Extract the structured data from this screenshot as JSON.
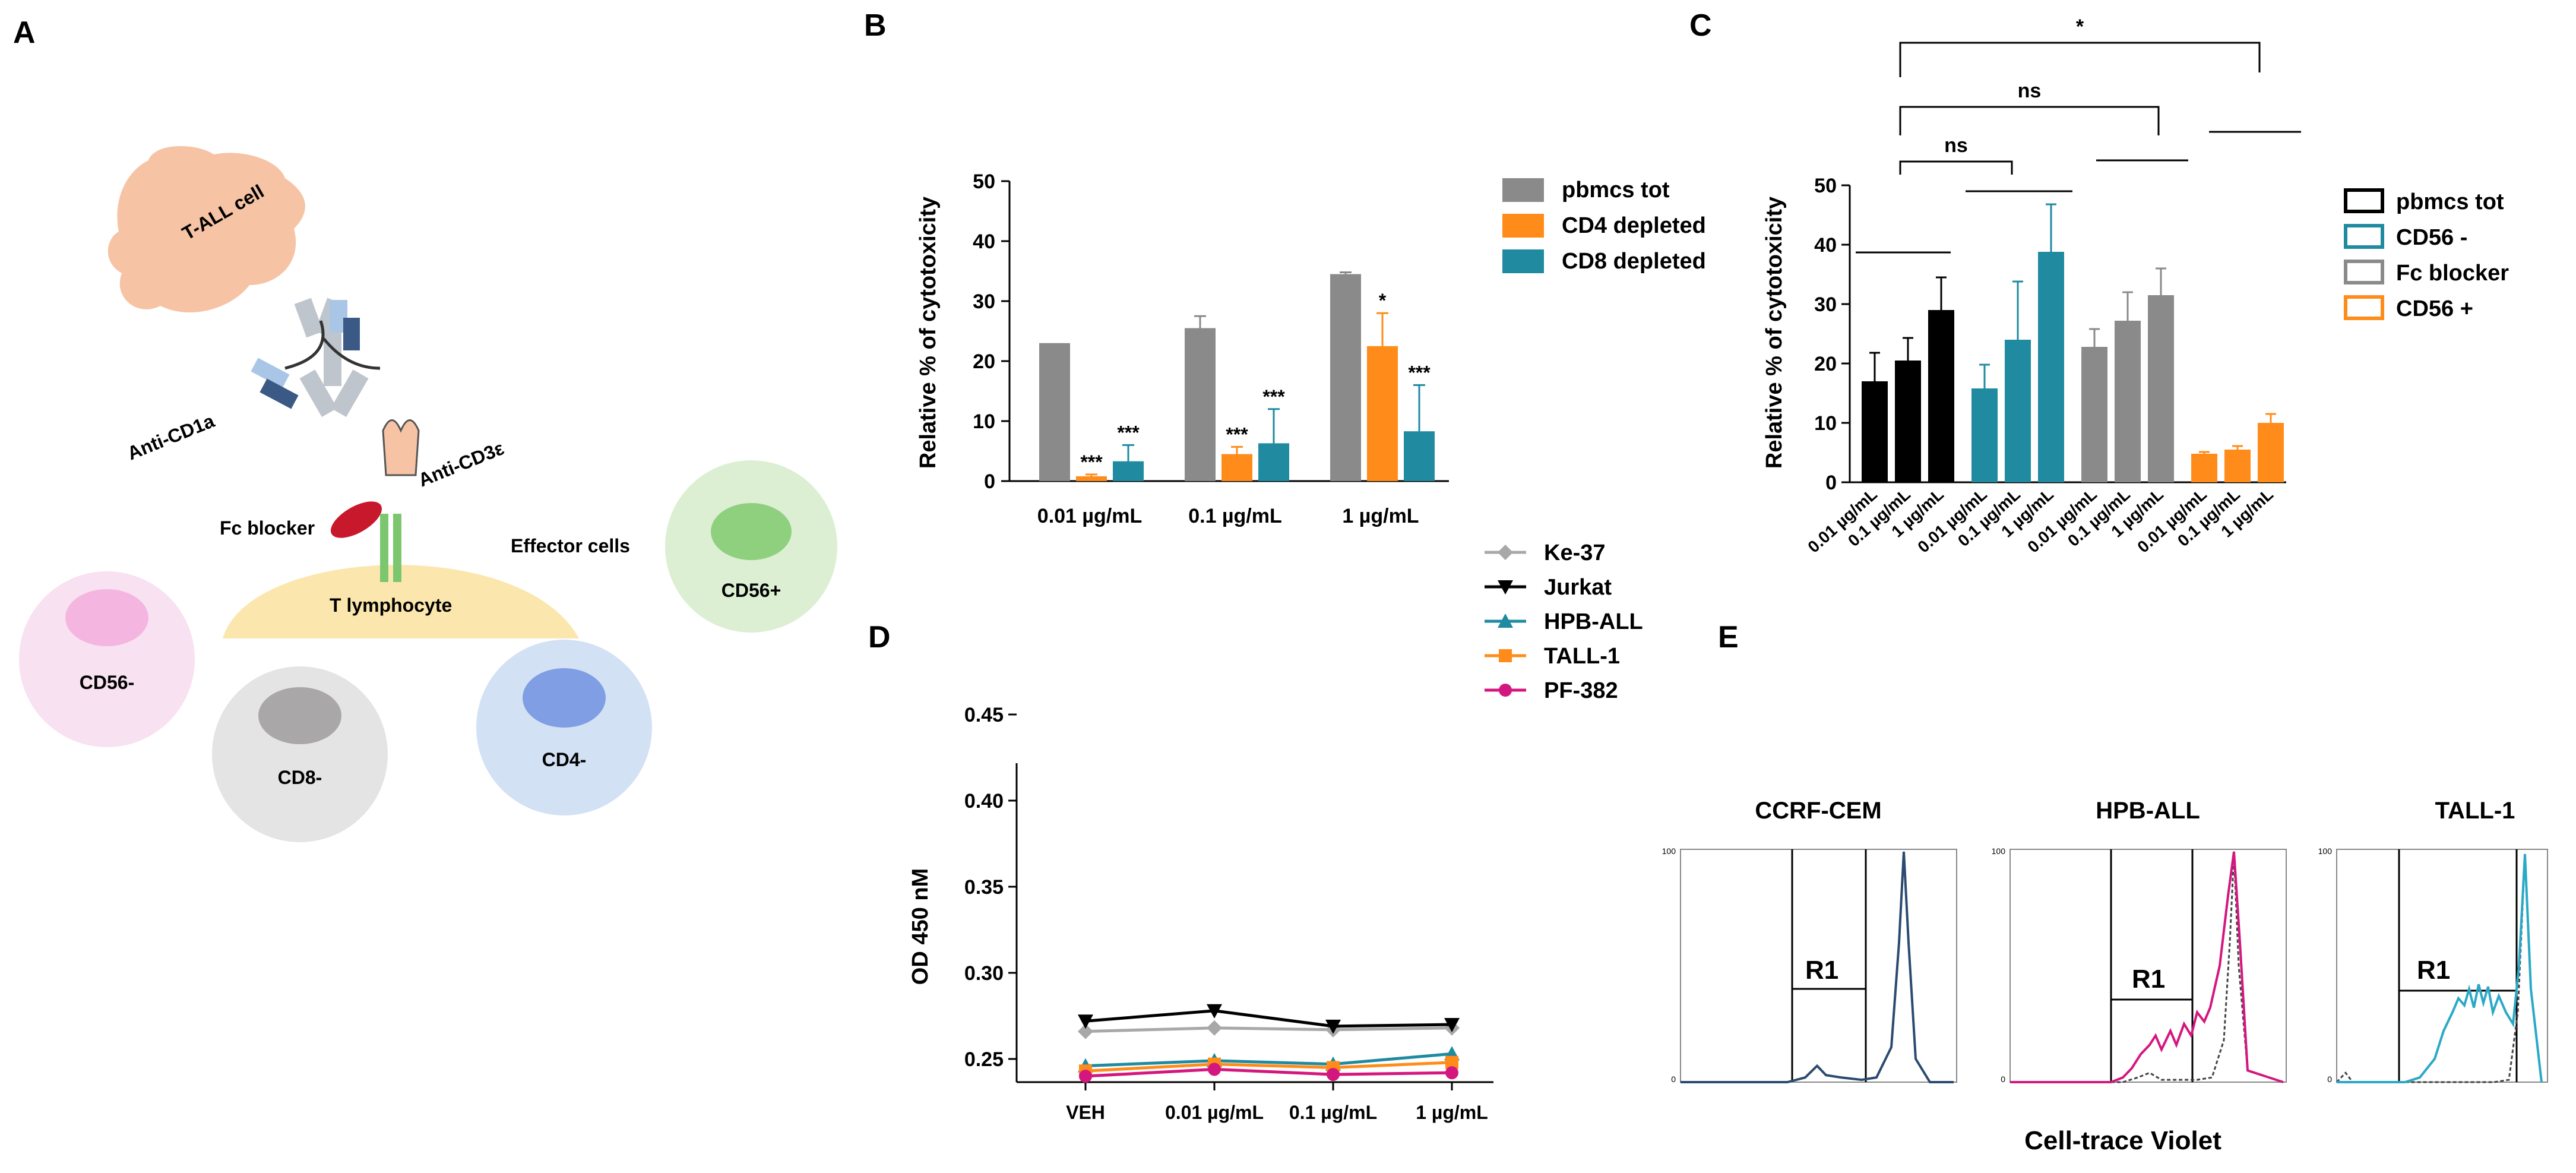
{
  "colors": {
    "grey": "#8a8a8a",
    "orange": "#ff8c1a",
    "teal": "#1f8aa0",
    "black": "#000000",
    "magenta": "#d4177f",
    "cyan": "#2aa9c7",
    "navy": "#2b4a6f",
    "lightgrey": "#a8a8a8"
  },
  "panels": {
    "a": "A",
    "b": "B",
    "c": "C",
    "d": "D",
    "e": "E"
  },
  "panel_a": {
    "cell_tall": "T-ALL cell",
    "anti_cd1a": "Anti-CD1a",
    "anti_cd3e": "Anti-CD3ε",
    "fc_blocker": "Fc blocker",
    "effector_cells": "Effector cells",
    "t_lymphocyte": "T lymphocyte",
    "cd56pos": "CD56+",
    "cd56neg": "CD56-",
    "cd8neg": "CD8-",
    "cd4neg": "CD4-"
  },
  "chart_data": [
    {
      "id": "B",
      "type": "bar",
      "categories": [
        "0.01 µg/mL",
        "0.1 µg/mL",
        "1 µg/mL"
      ],
      "series": [
        {
          "name": "pbmcs tot",
          "color_key": "grey",
          "values": [
            23,
            25.5,
            34.5
          ],
          "errors": [
            0,
            2,
            0.3
          ],
          "sig": [
            "",
            "",
            ""
          ]
        },
        {
          "name": "CD4 depleted",
          "color_key": "orange",
          "values": [
            0.8,
            4.5,
            22.5
          ],
          "errors": [
            0.3,
            1.2,
            5.5
          ],
          "sig": [
            "***",
            "***",
            "*"
          ]
        },
        {
          "name": "CD8 depleted",
          "color_key": "teal",
          "values": [
            3.3,
            6.3,
            8.3
          ],
          "errors": [
            2.7,
            5.7,
            7.7
          ],
          "sig": [
            "***",
            "***",
            "***"
          ]
        }
      ],
      "ylabel": "Relative % of cytotoxicity",
      "xlabel": "",
      "ylim": [
        0,
        50
      ],
      "yticks": [
        "0",
        "10",
        "20",
        "30",
        "40",
        "50"
      ]
    },
    {
      "id": "C",
      "type": "bar",
      "groups": [
        {
          "name": "pbmcs tot",
          "color_key": "black",
          "values": [
            17,
            20.5,
            29
          ],
          "errors": [
            4.8,
            3.8,
            5.5
          ]
        },
        {
          "name": "CD56 -",
          "color_key": "teal",
          "values": [
            15.8,
            24,
            38.8
          ],
          "errors": [
            4,
            9.8,
            8
          ]
        },
        {
          "name": "Fc blocker",
          "color_key": "grey",
          "values": [
            22.8,
            27.2,
            31.5
          ],
          "errors": [
            3,
            4.8,
            4.5
          ]
        },
        {
          "name": "CD56 +",
          "color_key": "orange",
          "values": [
            4.8,
            5.5,
            10
          ],
          "errors": [
            0.3,
            0.6,
            1.5
          ]
        }
      ],
      "bar_labels": [
        "0.01 µg/mL",
        "0.1 µg/mL",
        "1 µg/mL"
      ],
      "ylabel": "Relative % of cytotoxicity",
      "ylim": [
        0,
        50
      ],
      "yticks": [
        "0",
        "10",
        "20",
        "30",
        "40",
        "50"
      ],
      "annotations": {
        "top": "*",
        "middle": "ns",
        "inner": "ns"
      }
    },
    {
      "id": "D",
      "type": "line",
      "x": [
        "VEH",
        "0.01 µg/mL",
        "0.1 µg/mL",
        "1 µg/mL"
      ],
      "series": [
        {
          "name": "Ke-37",
          "color_key": "lightgrey",
          "marker": "diamond",
          "values": [
            0.266,
            0.268,
            0.267,
            0.268
          ]
        },
        {
          "name": "Jurkat",
          "color_key": "black",
          "marker": "tri-down",
          "values": [
            0.272,
            0.278,
            0.269,
            0.27
          ]
        },
        {
          "name": "HPB-ALL",
          "color_key": "teal",
          "marker": "tri-up",
          "values": [
            0.246,
            0.249,
            0.247,
            0.253
          ]
        },
        {
          "name": "TALL-1",
          "color_key": "orange",
          "marker": "square",
          "values": [
            0.243,
            0.247,
            0.245,
            0.248
          ]
        },
        {
          "name": "PF-382",
          "color_key": "magenta",
          "marker": "circle",
          "values": [
            0.24,
            0.244,
            0.241,
            0.242
          ]
        }
      ],
      "ylabel": "OD 450 nM",
      "yticks": [
        "0.25",
        "0.30",
        "0.35",
        "0.40",
        "0.45"
      ]
    },
    {
      "id": "E",
      "type": "histogram",
      "xlabel": "Cell-trace Violet",
      "gate": "R1",
      "titles": [
        "CCRF-CEM",
        "HPB-ALL",
        "TALL-1"
      ],
      "ytick_top": "100",
      "ytick_zero": "0"
    }
  ]
}
